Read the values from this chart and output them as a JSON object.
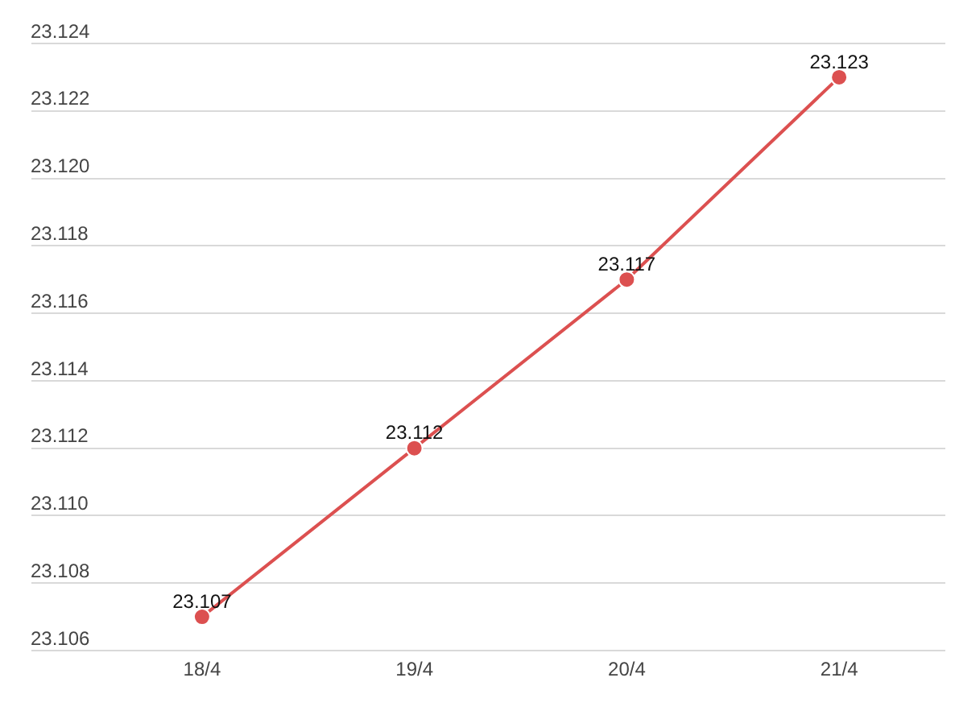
{
  "chart_data": {
    "type": "line",
    "categories": [
      "18/4",
      "19/4",
      "20/4",
      "21/4"
    ],
    "series": [
      {
        "color": "#dc5050",
        "values": [
          23.107,
          23.112,
          23.117,
          23.123
        ]
      }
    ],
    "ylim": [
      23.106,
      23.124
    ],
    "yticks": [
      23.106,
      23.108,
      {
        "value": 23.11,
        "label": "23.110"
      },
      23.112,
      23.114,
      23.116,
      23.118,
      {
        "value": 23.12,
        "label": "23.120"
      },
      23.122,
      23.124
    ],
    "grid": "y",
    "marker": "circle",
    "line_style": "solid",
    "data_labels": true
  }
}
